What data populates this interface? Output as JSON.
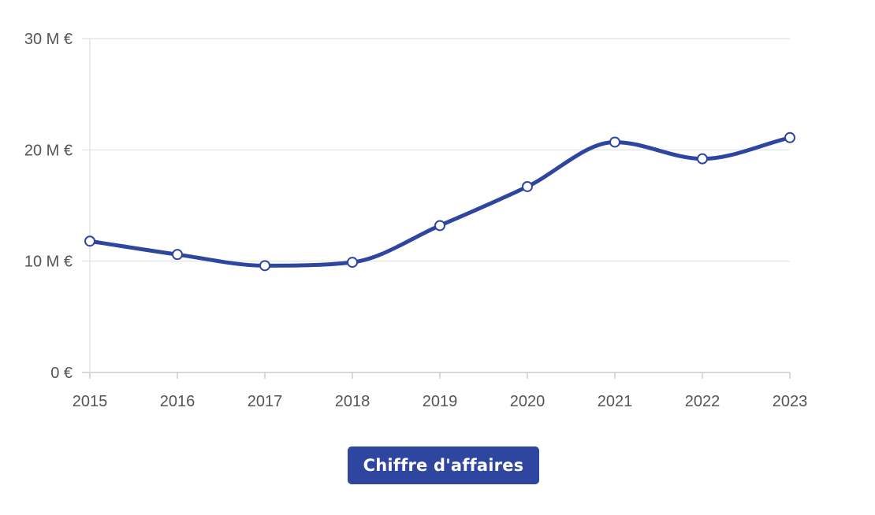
{
  "chart_data": {
    "type": "line",
    "categories": [
      "2015",
      "2016",
      "2017",
      "2018",
      "2019",
      "2020",
      "2021",
      "2022",
      "2023"
    ],
    "series": [
      {
        "name": "Chiffre d'affaires",
        "values": [
          11.8,
          10.6,
          9.6,
          9.9,
          13.2,
          16.7,
          20.7,
          19.2,
          21.1
        ],
        "color": "#2f46a0"
      }
    ],
    "y_ticks": [
      {
        "value": 0,
        "label": "0 €"
      },
      {
        "value": 10,
        "label": "10 M €"
      },
      {
        "value": 20,
        "label": "20 M €"
      },
      {
        "value": 30,
        "label": "30 M €"
      }
    ],
    "ylim": [
      0,
      30
    ],
    "grid": true,
    "legend_position": "bottom-center",
    "colors": {
      "series": "#2f46a0",
      "grid": "#e6e6e6",
      "axis": "#cccccc",
      "tick_text": "#555555",
      "point_fill": "#ffffff"
    }
  },
  "legend": {
    "label": "Chiffre d'affaires"
  }
}
